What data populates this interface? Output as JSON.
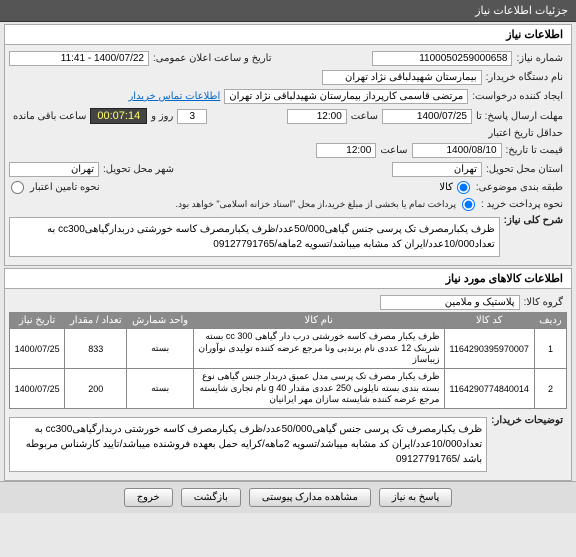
{
  "window_title": "جزئیات اطلاعات نیاز",
  "section_niaz": "اطلاعات نیاز",
  "fields": {
    "niaz_no_label": "شماره نیاز:",
    "niaz_no": "1100050259000658",
    "announce_label": "تاریخ و ساعت اعلان عمومی:",
    "announce": "1400/07/22 - 11:41",
    "buyer_label": "نام دستگاه خریدار:",
    "buyer": "بیمارستان شهیدلباقی نژاد تهران",
    "creator_label": "ایجاد کننده درخواست:",
    "creator": "مرتضی  قاسمی کارپرداز بیمارستان شهیدلباقی نژاد تهران",
    "contact_link": "اطلاعات تماس خریدار",
    "deadline_label": "مهلت ارسال پاسخ:  تا",
    "deadline_date": "1400/07/25",
    "saat": "ساعت",
    "deadline_time": "12:00",
    "rooz_va": "روز و",
    "days_left": "3",
    "countdown": "00:07:14",
    "remain_label": "ساعت باقی مانده",
    "credit_label": "حداقل تاریخ اعتبار",
    "credit_label2": "قیمت تا تاریخ:",
    "credit_date": "1400/08/10",
    "credit_time": "12:00",
    "deliver_prov_label": "استان محل تحویل:",
    "deliver_prov": "تهران",
    "deliver_city_label": "شهر محل تحویل:",
    "deliver_city": "تهران",
    "classify_label": "طبقه بندی موضوعی:",
    "classify": "کالا",
    "budget_label": "نحوه تامین اعتبار",
    "pay_label": "نحوه پرداخت خرید :",
    "pay_note": "پرداخت تمام یا بخشی از مبلغ خرید،از محل \"اسناد خزانه اسلامی\" خواهد بود."
  },
  "desc_label": "شرح کلی نیاز:",
  "desc": "ظرف یکبارمصرف تک پرسی جنس گیاهی50/000عدد/ظرف یکبارمصرف کاسه خورشتی دربدارگیاهیcc300 به تعداد10/000عدد/ایران کد مشابه میباشد/تسویه 2ماهه/09127791765",
  "items_header": "اطلاعات کالاهای مورد نیاز",
  "group_label": "گروه کالا:",
  "group": "پلاستیک و ملامین",
  "cols": {
    "row": "ردیف",
    "code": "کد کالا",
    "name": "نام کالا",
    "unit": "واحد شمارش",
    "qty": "تعداد / مقدار",
    "date": "تاریخ نیاز"
  },
  "rows": [
    {
      "n": "1",
      "code": "1164290395970007",
      "name": "ظرف یکبار مصرف کاسه خورشتی درب دار گیاهی 300 cc بسته شرینک 12 عددی نام برندبی ونا‌ مرجع عرضه کننده‌ تولیدی نوآوران زیباساز",
      "unit": "بسته",
      "qty": "833",
      "date": "1400/07/25"
    },
    {
      "n": "2",
      "code": "1164290774840014",
      "name": "ظرف یکبار مصرف تک پرسی مدل عمیق دربدار جنس گیاهی نوع بسته بندی بسته نایلونی 250 عددی مقدار 40 g نام تجاری شایسته مرجع عرضه کننده شایسته سازان مهر ایرانیان",
      "unit": "بسته",
      "qty": "200",
      "date": "1400/07/25"
    }
  ],
  "buyer_desc_label": "توضیحات خریدار:",
  "buyer_desc": "ظرف یکبارمصرف تک پرسی جنس گیاهی50/000عدد/ظرف یکبارمصرف کاسه خورشتی دربدارگیاهیcc300 به تعداد10/000عدد/ایران کد مشابه میباشد/تسویه 2ماهه/کرایه حمل بعهده فروشنده میباشد/تایید کارشناس مربوطه باشد /09127791765",
  "buttons": {
    "respond": "پاسخ به نیاز",
    "view_docs": "مشاهده مدارک پیوستی",
    "return": "بازگشت",
    "exit": "خروج"
  }
}
